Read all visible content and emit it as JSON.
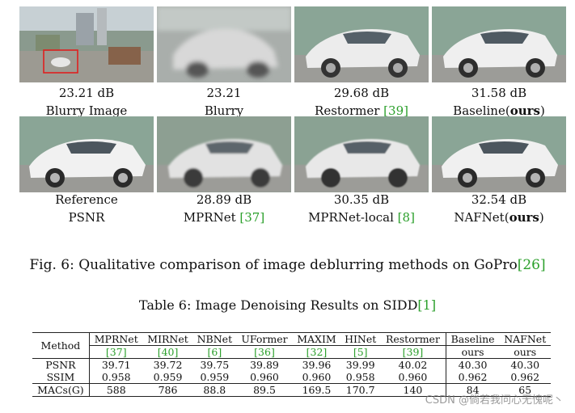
{
  "figure": {
    "panels": [
      {
        "caption1": "23.21 dB",
        "caption2": "Blurry Image",
        "cite": ""
      },
      {
        "caption1": "23.21",
        "caption2": "Blurry",
        "cite": ""
      },
      {
        "caption1": "29.68 dB",
        "caption2": "Restormer ",
        "cite": "[39]"
      },
      {
        "caption1": "31.58 dB",
        "caption2": "Baseline(",
        "bold": "ours",
        "after": ")"
      },
      {
        "caption1": "Reference",
        "caption2": "PSNR",
        "cite": ""
      },
      {
        "caption1": "28.89 dB",
        "caption2": "MPRNet ",
        "cite": "[37]"
      },
      {
        "caption1": "30.35 dB",
        "caption2": "MPRNet-local ",
        "cite": "[8]"
      },
      {
        "caption1": "32.54 dB",
        "caption2": "NAFNet(",
        "bold": "ours",
        "after": ")"
      }
    ],
    "caption": "Fig. 6: Qualitative comparison of image deblurring methods on GoPro",
    "caption_cite": "[26]"
  },
  "table": {
    "caption": "Table 6: Image Denoising Results on SIDD",
    "caption_cite": "[1]",
    "header_method": "Method",
    "methods": [
      {
        "name": "MPRNet",
        "sub": "[37]",
        "sub_cite": true
      },
      {
        "name": "MIRNet",
        "sub": "[40]",
        "sub_cite": true
      },
      {
        "name": "NBNet",
        "sub": "[6]",
        "sub_cite": true
      },
      {
        "name": "UFormer",
        "sub": "[36]",
        "sub_cite": true
      },
      {
        "name": "MAXIM",
        "sub": "[32]",
        "sub_cite": true
      },
      {
        "name": "HINet",
        "sub": "[5]",
        "sub_cite": true
      },
      {
        "name": "Restormer",
        "sub": "[39]",
        "sub_cite": true
      },
      {
        "name": "Baseline",
        "sub": "ours",
        "sub_cite": false
      },
      {
        "name": "NAFNet",
        "sub": "ours",
        "sub_cite": false
      }
    ],
    "rows": [
      {
        "label": "PSNR",
        "values": [
          "39.71",
          "39.72",
          "39.75",
          "39.89",
          "39.96",
          "39.99",
          "40.02",
          "40.30",
          "40.30"
        ]
      },
      {
        "label": "SSIM",
        "values": [
          "0.958",
          "0.959",
          "0.959",
          "0.960",
          "0.960",
          "0.958",
          "0.960",
          "0.962",
          "0.962"
        ]
      },
      {
        "label": "MACs(G)",
        "values": [
          "588",
          "786",
          "88.8",
          "89.5",
          "169.5",
          "170.7",
          "140",
          "84",
          "65"
        ]
      }
    ]
  },
  "watermark": "CSDN @倘若我问心无愧呢丶"
}
